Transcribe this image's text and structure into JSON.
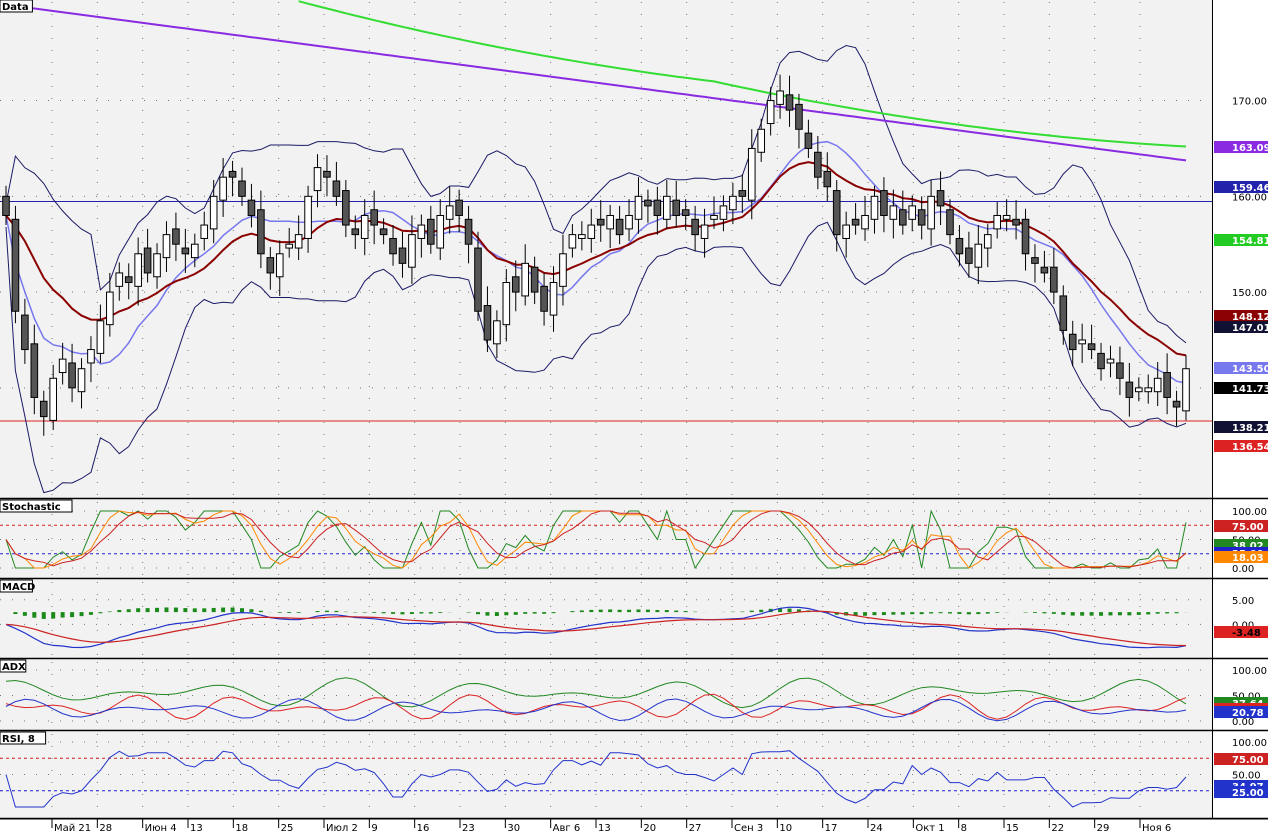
{
  "colors": {
    "bg": "#f2f2f2",
    "ma_purple": "#8a2be2",
    "ma_green": "#33dd33",
    "ma_darkred": "#8b0000",
    "bb_band": "#1a1a66",
    "bb_mid": "#7777ee",
    "hline_blue": "#2222aa",
    "hline_red": "#dd2222"
  },
  "chart_data": [
    {
      "type": "candlestick",
      "panel_title": "Data",
      "yticks": [
        "140.00",
        "150.00",
        "160.00",
        "170.00"
      ],
      "ylim": [
        128.5,
        180.5
      ],
      "hlines": [
        159.46,
        136.54
      ],
      "closes": [
        158,
        148,
        144,
        139,
        137,
        141,
        143,
        140,
        142,
        144,
        147,
        150,
        152,
        151,
        154,
        152,
        154,
        156,
        155,
        154,
        155,
        157,
        160,
        162,
        162,
        160,
        158,
        154,
        152,
        154,
        155,
        156,
        160,
        163,
        162,
        160,
        157,
        156,
        158,
        157,
        156,
        154,
        153,
        156,
        157,
        155,
        158,
        159,
        158,
        155,
        148,
        145,
        147,
        151,
        150,
        153,
        150,
        148,
        151,
        154,
        156,
        156,
        157,
        157,
        158,
        156,
        158,
        160,
        159,
        158,
        160,
        158,
        158,
        156,
        157,
        158,
        159,
        160,
        160,
        165,
        167,
        170,
        171,
        169,
        167,
        165,
        162,
        161,
        156,
        157,
        157,
        158,
        160,
        158,
        159,
        157,
        159,
        157,
        160,
        159,
        156,
        154,
        153,
        155,
        156,
        158,
        158,
        157,
        154,
        153,
        152,
        150,
        146,
        144,
        145,
        144,
        142,
        143,
        141,
        139,
        140,
        140,
        141,
        139,
        138,
        142
      ],
      "last_close_badge": "141.73",
      "right_badges": [
        "163.09",
        "159.46",
        "154.81",
        "148.12",
        "147.01",
        "143.50",
        "141.73",
        "138.21",
        "136.54"
      ],
      "xticks": [
        "Май 21",
        "28",
        "Июн 4",
        "13",
        "18",
        "25",
        "Июл 2",
        "9",
        "16",
        "23",
        "30",
        "Авг 6",
        "13",
        "20",
        "27",
        "Сен 3",
        "10",
        "17",
        "24",
        "Окт 1",
        "8",
        "15",
        "22",
        "29",
        "Ноя 6"
      ],
      "grid": true
    },
    {
      "type": "line",
      "panel_title": "Stochastic",
      "yticks": [
        "100.00",
        "50.00",
        "0.00"
      ],
      "ylim": [
        0,
        100
      ],
      "levels": [
        75,
        25
      ],
      "badges": [
        "75.00",
        "38.02",
        "25.00",
        "18.03"
      ]
    },
    {
      "type": "line",
      "panel_title": "MACD",
      "yticks": [
        "5.00",
        "0.00"
      ],
      "ylim": [
        -6,
        8
      ],
      "badges": [
        "-3.48"
      ]
    },
    {
      "type": "line",
      "panel_title": "ADX",
      "yticks": [
        "100.00",
        "50.00",
        "0.00"
      ],
      "ylim": [
        0,
        100
      ],
      "badges": [
        "37.64",
        "29.25",
        "20.78"
      ]
    },
    {
      "type": "line",
      "panel_title": "RSI, 8",
      "yticks": [
        "100.00",
        "75.00",
        "50.00",
        "25.00"
      ],
      "ylim": [
        0,
        100
      ],
      "levels": [
        75,
        25
      ],
      "badges": [
        "75.00",
        "34.97",
        "25.00"
      ]
    }
  ]
}
